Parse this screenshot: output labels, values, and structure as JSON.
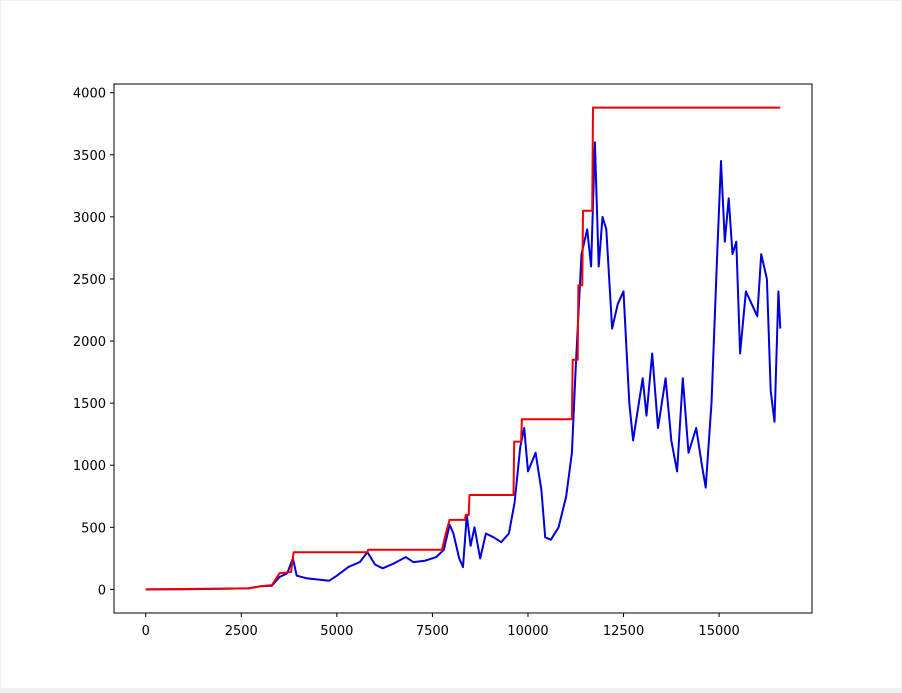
{
  "chart_data": {
    "type": "line",
    "xlim": [
      -830,
      17430
    ],
    "ylim": [
      -190,
      4070
    ],
    "xticks": [
      0,
      2500,
      5000,
      7500,
      10000,
      12500,
      15000
    ],
    "yticks": [
      0,
      500,
      1000,
      1500,
      2000,
      2500,
      3000,
      3500,
      4000
    ],
    "series": [
      {
        "color": "#0000dd",
        "x": [
          0,
          1000,
          2000,
          2700,
          3000,
          3300,
          3500,
          3700,
          3850,
          3950,
          4200,
          4500,
          4800,
          5000,
          5300,
          5600,
          5800,
          6000,
          6200,
          6500,
          6800,
          7000,
          7300,
          7600,
          7800,
          7950,
          8050,
          8200,
          8300,
          8400,
          8500,
          8600,
          8750,
          8900,
          9100,
          9300,
          9500,
          9650,
          9800,
          9900,
          10000,
          10200,
          10350,
          10450,
          10600,
          10800,
          11000,
          11150,
          11250,
          11400,
          11550,
          11650,
          11750,
          11850,
          11950,
          12050,
          12200,
          12350,
          12500,
          12650,
          12750,
          12850,
          13000,
          13100,
          13250,
          13400,
          13600,
          13750,
          13900,
          14050,
          14200,
          14400,
          14550,
          14650,
          14800,
          14950,
          15050,
          15150,
          15250,
          15350,
          15450,
          15550,
          15700,
          15850,
          16000,
          16100,
          16250,
          16350,
          16450,
          16550,
          16600
        ],
        "values": [
          0,
          2,
          5,
          10,
          25,
          30,
          100,
          130,
          250,
          110,
          90,
          80,
          70,
          110,
          180,
          220,
          300,
          200,
          170,
          210,
          260,
          220,
          230,
          260,
          320,
          520,
          450,
          250,
          180,
          600,
          350,
          500,
          250,
          450,
          420,
          380,
          450,
          700,
          1150,
          1300,
          950,
          1100,
          800,
          420,
          400,
          500,
          750,
          1100,
          1800,
          2700,
          2900,
          2600,
          3600,
          2600,
          3000,
          2900,
          2100,
          2300,
          2400,
          1500,
          1200,
          1400,
          1700,
          1400,
          1900,
          1300,
          1700,
          1200,
          950,
          1700,
          1100,
          1300,
          1000,
          820,
          1500,
          2700,
          3450,
          2800,
          3150,
          2700,
          2800,
          1900,
          2400,
          2300,
          2200,
          2700,
          2500,
          1600,
          1350,
          2400,
          2100
        ]
      },
      {
        "color": "#ee0000",
        "x": [
          0,
          2700,
          3000,
          3300,
          3500,
          3800,
          3870,
          5800,
          5820,
          7750,
          7850,
          7950,
          8350,
          8370,
          8450,
          8470,
          9620,
          9640,
          9820,
          9840,
          11150,
          11170,
          11300,
          11320,
          11420,
          11440,
          11680,
          11700,
          16600
        ],
        "values": [
          0,
          8,
          25,
          35,
          130,
          140,
          300,
          300,
          320,
          320,
          450,
          560,
          560,
          600,
          600,
          760,
          760,
          1190,
          1190,
          1370,
          1370,
          1850,
          1850,
          2450,
          2450,
          3050,
          3050,
          3880,
          3880
        ]
      }
    ]
  }
}
